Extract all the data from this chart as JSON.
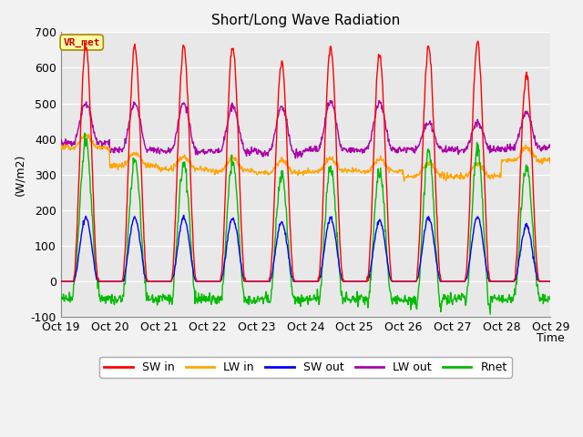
{
  "title": "Short/Long Wave Radiation",
  "ylabel": "(W/m2)",
  "xlabel": "Time",
  "ylim": [
    -100,
    700
  ],
  "xlim": [
    0,
    240
  ],
  "x_tick_labels": [
    "Oct 19",
    "Oct 20",
    "Oct 21",
    "Oct 22",
    "Oct 23",
    "Oct 24",
    "Oct 25",
    "Oct 26",
    "Oct 27",
    "Oct 28",
    "Oct 29"
  ],
  "x_tick_positions": [
    0,
    24,
    48,
    72,
    96,
    120,
    144,
    168,
    192,
    216,
    240
  ],
  "yticks": [
    -100,
    0,
    100,
    200,
    300,
    400,
    500,
    600,
    700
  ],
  "colors": {
    "SW_in": "#FF0000",
    "LW_in": "#FFA500",
    "SW_out": "#0000FF",
    "LW_out": "#AA00AA",
    "Rnet": "#00BB00"
  },
  "legend_labels": [
    "SW in",
    "LW in",
    "SW out",
    "LW out",
    "Rnet"
  ],
  "annotation_text": "VR_met",
  "annotation_color": "#CC0000",
  "annotation_bg": "#FFFFAA",
  "plot_bg": "#E8E8E8",
  "fig_bg": "#F2F2F2",
  "title_fontsize": 11,
  "axis_fontsize": 9,
  "tick_fontsize": 9,
  "linewidth": 1.0
}
